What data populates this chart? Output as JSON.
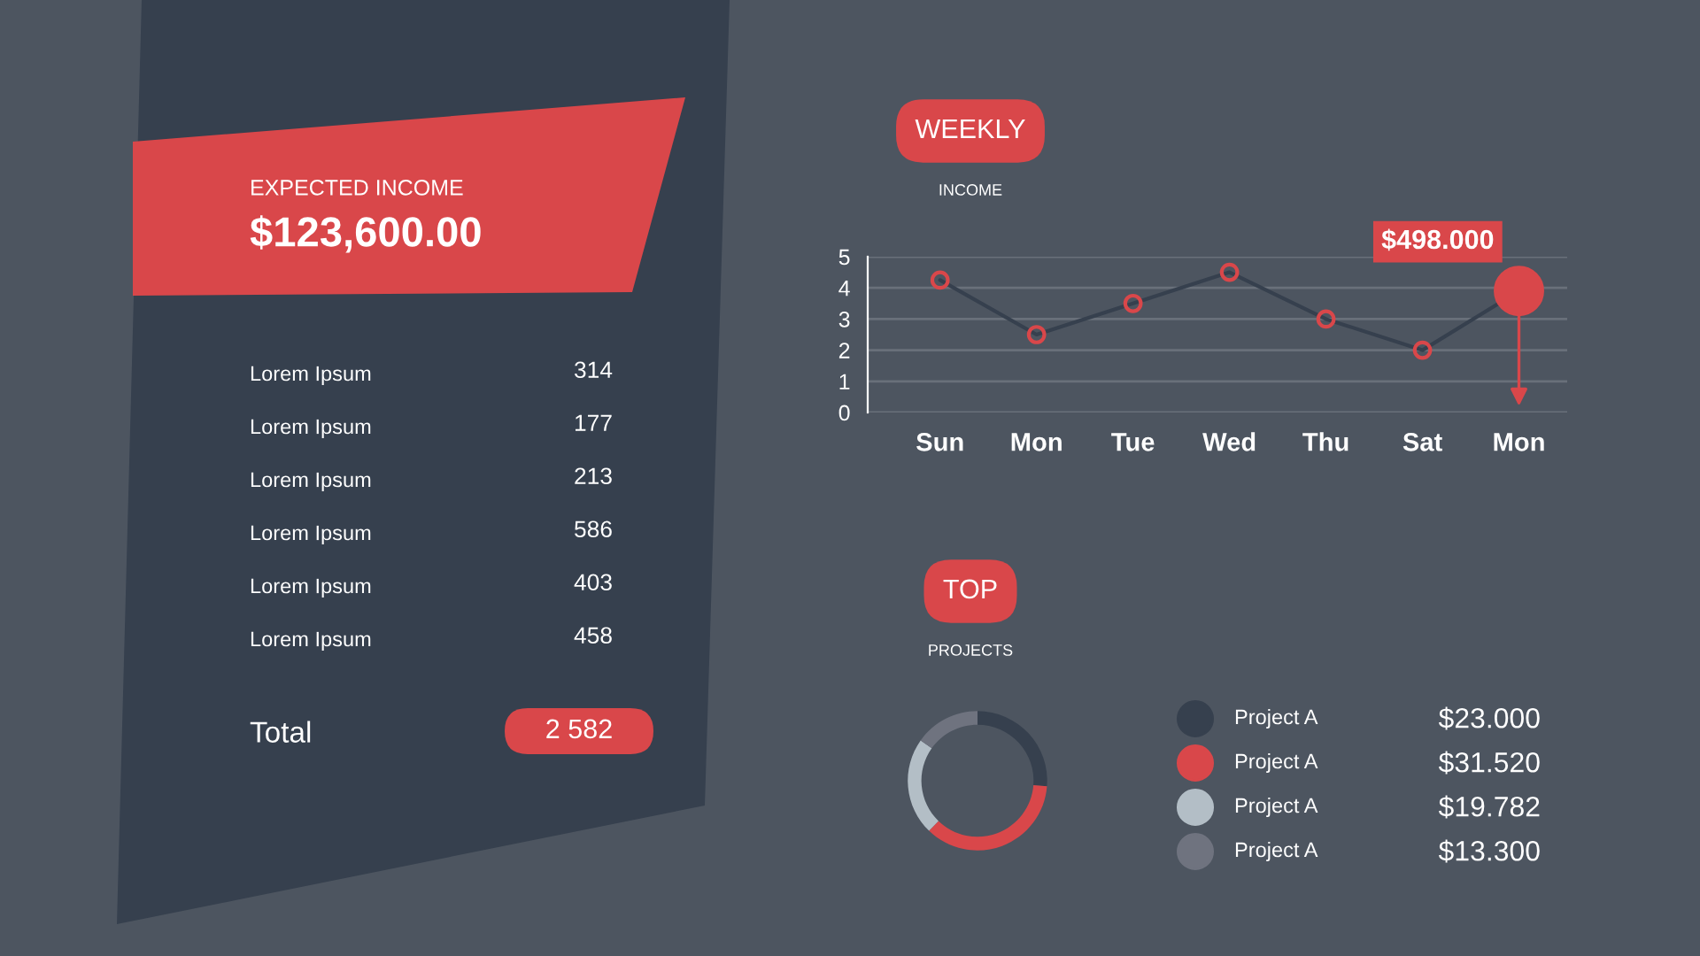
{
  "chart_data": [
    {
      "type": "other",
      "title": "EXPECTED INCOME",
      "subtitle": "$123,600.00",
      "categories": [
        "Lorem Ipsum",
        "Lorem Ipsum",
        "Lorem Ipsum",
        "Lorem Ipsum",
        "Lorem Ipsum",
        "Lorem Ipsum"
      ],
      "values": [
        314,
        177,
        213,
        586,
        403,
        458
      ],
      "data_labels": true,
      "annotations": [
        "Total",
        "2 582"
      ]
    },
    {
      "type": "line",
      "title": "WEEKLY",
      "subtitle": "INCOME",
      "categories": [
        "Sun",
        "Mon",
        "Tue",
        "Wed",
        "Thu",
        "Sat",
        "Mon"
      ],
      "series": [
        {
          "color": "#36404e",
          "colors": [
            "#d9474a",
            "#d9474a",
            "#d9474a",
            "#d9474a",
            "#d9474a",
            "#d9474a",
            "#d9474a"
          ],
          "values": [
            4.25,
            2.5,
            3.5,
            4.5,
            3,
            2,
            3.9
          ]
        }
      ],
      "ylim": [
        0,
        5
      ],
      "yticks": [
        0,
        1,
        2,
        3,
        4,
        5
      ],
      "grid": "y",
      "marker": "circle",
      "line_style": "solid",
      "annotations": [
        "$498.000"
      ]
    },
    {
      "type": "donut",
      "title": "TOP",
      "subtitle": "PROJECTS",
      "categories": [
        "Project A",
        "Project A",
        "Project A",
        "Project A"
      ],
      "values": [
        23.0,
        31.52,
        19.782,
        13.3
      ],
      "colors": [
        "#36404e",
        "#d9474a",
        "#b3bec6",
        "#6f737f"
      ],
      "value_labels": [
        "$23.000",
        "$31.520",
        "$19.782",
        "$13.300"
      ],
      "legend": "right"
    }
  ]
}
